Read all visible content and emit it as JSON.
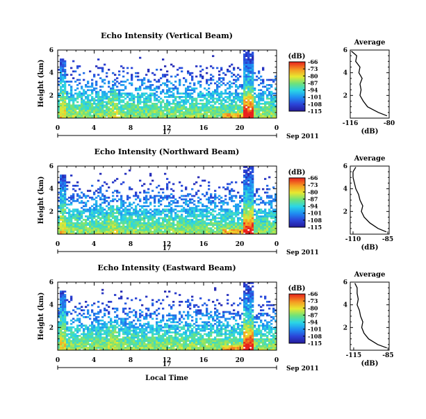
{
  "chart_data": [
    {
      "type": "heatmap",
      "title": "Echo Intensity (Vertical Beam)",
      "ylabel": "Height (km)",
      "xlim": [
        0,
        24
      ],
      "ylim": [
        0,
        6
      ],
      "x_ticks": [
        "0",
        "4",
        "8",
        "12",
        "16",
        "20",
        "0"
      ],
      "y_ticks": [
        "2",
        "4",
        "6"
      ],
      "day_label": "17",
      "month_label": "Sep 2011",
      "colorbar": {
        "unit": "(dB)",
        "ticks": [
          "-66",
          "-73",
          "-80",
          "-87",
          "-94",
          "-101",
          "-108",
          "-115"
        ],
        "range": [
          -115,
          -66
        ]
      },
      "average_profile": {
        "title": "Average",
        "xlabel": "(dB)",
        "x_ticks": [
          "-116",
          "-80"
        ],
        "xlim": [
          -116,
          -80
        ],
        "height_km": [
          0.2,
          0.5,
          1.0,
          1.5,
          2.0,
          2.5,
          3.0,
          3.5,
          4.0,
          4.5,
          5.0,
          5.5,
          5.9
        ],
        "db": [
          -82,
          -90,
          -100,
          -104,
          -107,
          -106,
          -107,
          -105,
          -108,
          -107,
          -111,
          -110,
          -115
        ]
      }
    },
    {
      "type": "heatmap",
      "title": "Echo Intensity (Northward Beam)",
      "ylabel": "Height (km)",
      "xlim": [
        0,
        24
      ],
      "ylim": [
        0,
        6
      ],
      "x_ticks": [
        "0",
        "4",
        "8",
        "12",
        "16",
        "20",
        "0"
      ],
      "y_ticks": [
        "2",
        "4",
        "6"
      ],
      "day_label": "17",
      "month_label": "Sep 2011",
      "colorbar": {
        "unit": "(dB)",
        "ticks": [
          "-66",
          "-73",
          "-80",
          "-87",
          "-94",
          "-101",
          "-108",
          "-115"
        ],
        "range": [
          -115,
          -66
        ]
      },
      "average_profile": {
        "title": "Average",
        "xlabel": "(dB)",
        "x_ticks": [
          "-110",
          "-85"
        ],
        "xlim": [
          -112,
          -84
        ],
        "height_km": [
          0.2,
          0.5,
          1.0,
          1.5,
          2.0,
          2.5,
          3.0,
          3.5,
          4.0,
          4.5,
          5.0,
          5.5,
          5.9
        ],
        "db": [
          -86,
          -92,
          -98,
          -102,
          -104,
          -103,
          -105,
          -106,
          -108,
          -109,
          -110,
          -110,
          -108
        ]
      }
    },
    {
      "type": "heatmap",
      "title": "Echo Intensity (Eastward Beam)",
      "xlabel": "Local Time",
      "ylabel": "Height (km)",
      "xlim": [
        0,
        24
      ],
      "ylim": [
        0,
        6
      ],
      "x_ticks": [
        "0",
        "4",
        "8",
        "12",
        "16",
        "20",
        "0"
      ],
      "y_ticks": [
        "2",
        "4",
        "6"
      ],
      "day_label": "17",
      "month_label": "Sep 2011",
      "colorbar": {
        "unit": "(dB)",
        "ticks": [
          "-66",
          "-73",
          "-80",
          "-87",
          "-94",
          "-101",
          "-108",
          "-115"
        ],
        "range": [
          -115,
          -66
        ]
      },
      "average_profile": {
        "title": "Average",
        "xlabel": "(dB)",
        "x_ticks": [
          "-115",
          "-85"
        ],
        "xlim": [
          -118,
          -84
        ],
        "height_km": [
          0.2,
          0.5,
          1.0,
          1.5,
          2.0,
          2.5,
          3.0,
          3.5,
          4.0,
          4.5,
          5.0,
          5.5,
          5.9
        ],
        "db": [
          -86,
          -94,
          -102,
          -106,
          -108,
          -107,
          -109,
          -110,
          -112,
          -111,
          -112,
          -112,
          -114
        ]
      }
    }
  ]
}
